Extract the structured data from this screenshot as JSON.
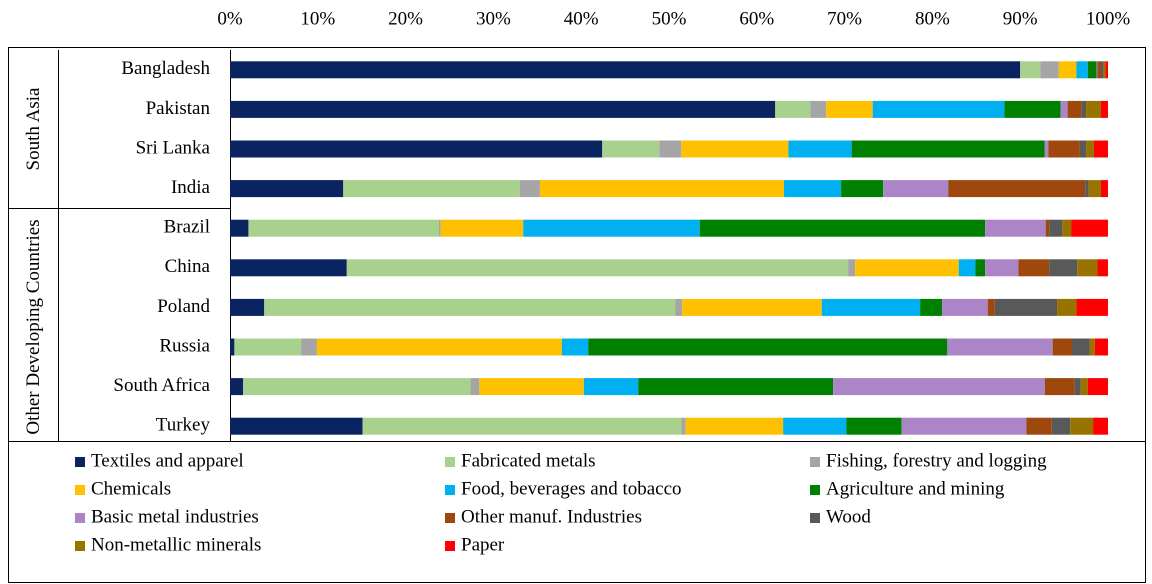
{
  "chart_data": {
    "type": "stacked-bar-horizontal",
    "category_groups": [
      {
        "name": "South Asia",
        "categories": [
          "Bangladesh",
          "Pakistan",
          "Sri Lanka",
          "India"
        ]
      },
      {
        "name": "Other Developing Countries",
        "categories": [
          "Brazil",
          "China",
          "Poland",
          "Russia",
          "South Africa",
          "Turkey"
        ]
      }
    ],
    "xlim": [
      0,
      100
    ],
    "xticks": [
      {
        "value": 0,
        "label": "0%"
      },
      {
        "value": 10,
        "label": "10%"
      },
      {
        "value": 20,
        "label": "20%"
      },
      {
        "value": 30,
        "label": "30%"
      },
      {
        "value": 40,
        "label": "40%"
      },
      {
        "value": 50,
        "label": "50%"
      },
      {
        "value": 60,
        "label": "60%"
      },
      {
        "value": 70,
        "label": "70%"
      },
      {
        "value": 80,
        "label": "80%"
      },
      {
        "value": 90,
        "label": "90%"
      },
      {
        "value": 100,
        "label": "100%"
      }
    ],
    "series": [
      {
        "name": "Textiles and apparel",
        "color": "#0a2461",
        "values": [
          90.0,
          62.1,
          42.4,
          12.9,
          2.1,
          13.3,
          3.9,
          0.5,
          1.5,
          15.1
        ]
      },
      {
        "name": "Fabricated metals",
        "color": "#a9d18e",
        "values": [
          2.3,
          4.0,
          6.5,
          20.1,
          21.7,
          57.1,
          46.8,
          7.6,
          25.9,
          36.3
        ]
      },
      {
        "name": "Fishing, forestry and logging",
        "color": "#a5a5a5",
        "values": [
          2.1,
          1.8,
          2.5,
          2.3,
          0.2,
          0.8,
          0.8,
          1.8,
          1.0,
          0.5
        ]
      },
      {
        "name": "Chemicals",
        "color": "#ffc000",
        "values": [
          2.0,
          5.3,
          12.2,
          27.8,
          9.4,
          11.8,
          15.9,
          27.9,
          11.9,
          11.1
        ]
      },
      {
        "name": "Food, beverages and tobacco",
        "color": "#00b0f0",
        "values": [
          1.3,
          15.0,
          7.2,
          6.5,
          20.1,
          1.9,
          11.2,
          3.0,
          6.2,
          7.2
        ]
      },
      {
        "name": "Agriculture and mining",
        "color": "#008000",
        "values": [
          1.0,
          6.4,
          22.0,
          4.8,
          32.5,
          1.1,
          2.5,
          40.9,
          22.2,
          6.3
        ]
      },
      {
        "name": "Basic metal industries",
        "color": "#ac85c9",
        "values": [
          0.1,
          0.8,
          0.4,
          7.4,
          6.9,
          3.8,
          5.2,
          12.0,
          24.1,
          14.2
        ]
      },
      {
        "name": "Other manuf. Industries",
        "color": "#9e480e",
        "values": [
          0.4,
          1.6,
          3.6,
          15.6,
          0.4,
          3.5,
          0.8,
          2.2,
          3.4,
          2.9
        ]
      },
      {
        "name": "Wood",
        "color": "#595959",
        "values": [
          0.3,
          0.5,
          0.7,
          0.4,
          1.5,
          3.2,
          7.1,
          2.0,
          0.7,
          2.1
        ]
      },
      {
        "name": "Non-metallic minerals",
        "color": "#997300",
        "values": [
          0.2,
          1.7,
          0.9,
          1.4,
          1.0,
          2.3,
          2.2,
          0.6,
          0.8,
          2.6
        ]
      },
      {
        "name": "Paper",
        "color": "#ff0000",
        "values": [
          0.3,
          0.8,
          1.6,
          0.8,
          4.2,
          1.2,
          3.6,
          1.5,
          2.3,
          1.7
        ]
      }
    ]
  }
}
